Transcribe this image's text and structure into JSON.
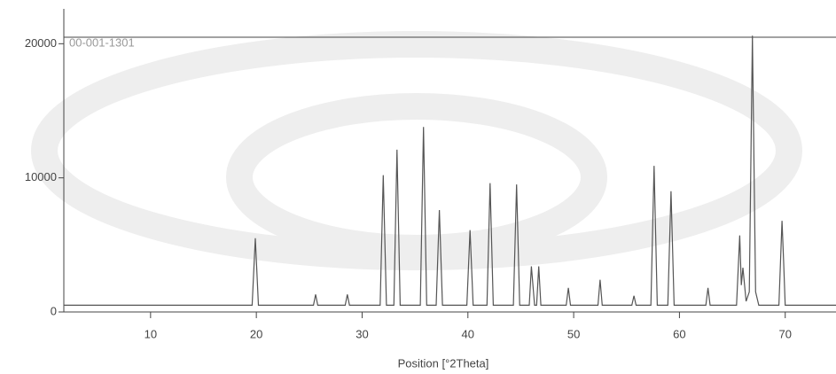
{
  "chart_data": {
    "type": "line",
    "x_label": "Position [°2Theta]",
    "annotation": "00-001-1301",
    "x": [
      1.8,
      19.6,
      19.9,
      20.2,
      25.4,
      25.6,
      25.8,
      28.4,
      28.6,
      28.8,
      31.7,
      32.0,
      32.3,
      33.0,
      33.3,
      33.6,
      35.5,
      35.8,
      36.1,
      37.0,
      37.3,
      37.6,
      39.9,
      40.2,
      40.5,
      41.8,
      42.1,
      42.4,
      44.3,
      44.6,
      44.9,
      45.8,
      46.0,
      46.3,
      46.5,
      46.7,
      46.9,
      49.3,
      49.5,
      49.7,
      52.3,
      52.5,
      52.7,
      55.5,
      55.7,
      55.9,
      57.3,
      57.6,
      57.9,
      58.9,
      59.2,
      59.5,
      62.5,
      62.7,
      62.9,
      65.4,
      65.7,
      65.85,
      66.0,
      66.3,
      66.6,
      66.9,
      67.2,
      67.5,
      69.4,
      69.7,
      69.85,
      70.0,
      74.8
    ],
    "values": [
      500,
      500,
      5500,
      500,
      500,
      1300,
      500,
      500,
      1300,
      500,
      500,
      10200,
      500,
      500,
      12100,
      500,
      500,
      13800,
      500,
      500,
      7600,
      500,
      500,
      6100,
      500,
      500,
      9600,
      500,
      500,
      9500,
      500,
      500,
      3400,
      500,
      500,
      3400,
      500,
      500,
      1800,
      500,
      500,
      2400,
      500,
      500,
      1200,
      500,
      500,
      10900,
      500,
      500,
      9000,
      500,
      500,
      1800,
      500,
      500,
      5700,
      2000,
      3300,
      800,
      1500,
      20600,
      1500,
      500,
      500,
      6800,
      3800,
      500,
      500
    ],
    "color": "#555555",
    "xlim": [
      1.8,
      74.8
    ],
    "xticks": [
      10,
      20,
      30,
      40,
      50,
      60,
      70
    ],
    "ylim": [
      0,
      22600
    ],
    "yticks": [
      0,
      10000,
      20000
    ]
  }
}
